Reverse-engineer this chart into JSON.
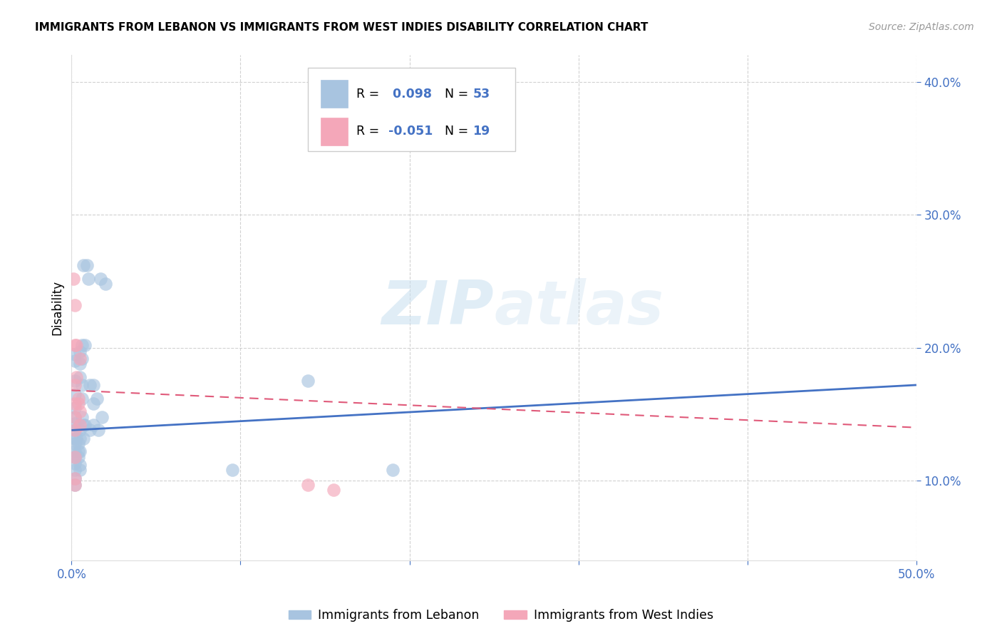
{
  "title": "IMMIGRANTS FROM LEBANON VS IMMIGRANTS FROM WEST INDIES DISABILITY CORRELATION CHART",
  "source": "Source: ZipAtlas.com",
  "ylabel": "Disability",
  "xlim": [
    0.0,
    0.5
  ],
  "ylim": [
    0.04,
    0.42
  ],
  "xtick_vals": [
    0.0,
    0.1,
    0.2,
    0.3,
    0.4,
    0.5
  ],
  "xtick_labels_sparse": {
    "0.0": "0.0%",
    "0.5": "50.0%"
  },
  "ytick_vals": [
    0.1,
    0.2,
    0.3,
    0.4
  ],
  "ytick_labels": [
    "10.0%",
    "20.0%",
    "30.0%",
    "40.0%"
  ],
  "legend1_r": "0.098",
  "legend1_n": "53",
  "legend2_r": "-0.051",
  "legend2_n": "19",
  "legend_label1_blue": "Immigrants from Lebanon",
  "legend_label2_pink": "Immigrants from West Indies",
  "blue_color": "#a8c4e0",
  "pink_color": "#f4a7b9",
  "blue_line_color": "#4472c4",
  "pink_line_color": "#e05a7a",
  "watermark_zip": "ZIP",
  "watermark_atlas": "atlas",
  "blue_scatter": [
    [
      0.002,
      0.195
    ],
    [
      0.002,
      0.19
    ],
    [
      0.002,
      0.175
    ],
    [
      0.002,
      0.165
    ],
    [
      0.002,
      0.155
    ],
    [
      0.002,
      0.148
    ],
    [
      0.002,
      0.143
    ],
    [
      0.002,
      0.138
    ],
    [
      0.002,
      0.132
    ],
    [
      0.002,
      0.128
    ],
    [
      0.002,
      0.122
    ],
    [
      0.002,
      0.118
    ],
    [
      0.002,
      0.113
    ],
    [
      0.002,
      0.108
    ],
    [
      0.002,
      0.102
    ],
    [
      0.002,
      0.097
    ],
    [
      0.003,
      0.132
    ],
    [
      0.004,
      0.128
    ],
    [
      0.004,
      0.122
    ],
    [
      0.004,
      0.118
    ],
    [
      0.005,
      0.197
    ],
    [
      0.005,
      0.188
    ],
    [
      0.005,
      0.178
    ],
    [
      0.005,
      0.138
    ],
    [
      0.005,
      0.132
    ],
    [
      0.005,
      0.122
    ],
    [
      0.005,
      0.112
    ],
    [
      0.005,
      0.108
    ],
    [
      0.006,
      0.202
    ],
    [
      0.006,
      0.192
    ],
    [
      0.006,
      0.162
    ],
    [
      0.006,
      0.148
    ],
    [
      0.006,
      0.172
    ],
    [
      0.007,
      0.262
    ],
    [
      0.007,
      0.142
    ],
    [
      0.007,
      0.132
    ],
    [
      0.008,
      0.202
    ],
    [
      0.008,
      0.142
    ],
    [
      0.009,
      0.262
    ],
    [
      0.01,
      0.252
    ],
    [
      0.011,
      0.172
    ],
    [
      0.011,
      0.138
    ],
    [
      0.013,
      0.172
    ],
    [
      0.013,
      0.158
    ],
    [
      0.013,
      0.142
    ],
    [
      0.015,
      0.162
    ],
    [
      0.016,
      0.138
    ],
    [
      0.017,
      0.252
    ],
    [
      0.018,
      0.148
    ],
    [
      0.02,
      0.248
    ],
    [
      0.095,
      0.108
    ],
    [
      0.14,
      0.175
    ],
    [
      0.19,
      0.108
    ]
  ],
  "pink_scatter": [
    [
      0.001,
      0.252
    ],
    [
      0.002,
      0.232
    ],
    [
      0.002,
      0.202
    ],
    [
      0.002,
      0.172
    ],
    [
      0.002,
      0.158
    ],
    [
      0.002,
      0.148
    ],
    [
      0.002,
      0.138
    ],
    [
      0.002,
      0.118
    ],
    [
      0.002,
      0.102
    ],
    [
      0.002,
      0.097
    ],
    [
      0.003,
      0.202
    ],
    [
      0.003,
      0.178
    ],
    [
      0.004,
      0.162
    ],
    [
      0.004,
      0.158
    ],
    [
      0.005,
      0.192
    ],
    [
      0.005,
      0.152
    ],
    [
      0.005,
      0.142
    ],
    [
      0.14,
      0.097
    ],
    [
      0.155,
      0.093
    ]
  ],
  "blue_trendline": [
    [
      0.0,
      0.138
    ],
    [
      0.5,
      0.172
    ]
  ],
  "pink_trendline": [
    [
      0.0,
      0.168
    ],
    [
      0.5,
      0.14
    ]
  ]
}
